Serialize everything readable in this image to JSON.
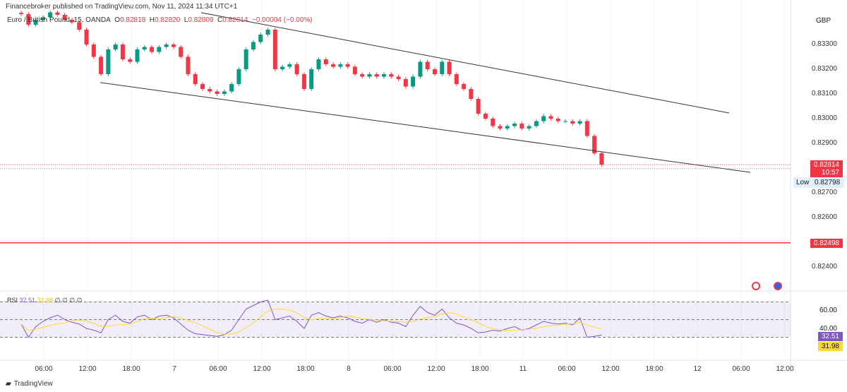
{
  "header": {
    "published": "Financebroker published on TradingView.com, Nov 11, 2024 11:34 UTC+1",
    "symbol": "Euro / British Pound, 15, OANDA",
    "o_label": "O",
    "o": "0.82818",
    "h_label": "H",
    "h": "0.82820",
    "l_label": "L",
    "l": "0.82809",
    "c_label": "C",
    "c": "0.82814",
    "change": "−0.00004 (−0.00%)"
  },
  "currency": "GBP",
  "price_axis": [
    "0.83300",
    "0.83200",
    "0.83100",
    "0.83000",
    "0.82900",
    "0.82700",
    "0.82600",
    "0.82400"
  ],
  "tags": {
    "last": "0.82814",
    "countdown": "10:57",
    "low_label": "Low",
    "low": "0.82798",
    "level": "0.82498"
  },
  "time_axis": [
    "06:00",
    "12:00",
    "18:00",
    "7",
    "06:00",
    "12:00",
    "18:00",
    "8",
    "06:00",
    "12:00",
    "18:00",
    "11",
    "06:00",
    "12:00",
    "18:00",
    "12",
    "06:00",
    "12:00"
  ],
  "rsi": {
    "label": "RSI",
    "value": "32.51",
    "ma": "31.98",
    "extra": "∅ ∅ ∅ ∅",
    "axis": [
      "60.00",
      "40.00"
    ]
  },
  "footer": {
    "brand": "TradingView"
  },
  "colors": {
    "up": "#089981",
    "down": "#f23645",
    "rsi": "#7e57c2",
    "rsi_ma": "#fdd835",
    "level": "#f23645"
  },
  "chart_data": {
    "type": "candlestick",
    "interval": "hourly closes (approx.)",
    "start": "2024-11-06 03:00",
    "closes": [
      0.83423,
      0.8338,
      0.834,
      0.8341,
      0.8343,
      0.8342,
      0.834,
      0.8339,
      0.8336,
      0.833,
      0.8325,
      0.8318,
      0.8328,
      0.833,
      0.8324,
      0.8323,
      0.8328,
      0.8329,
      0.8327,
      0.8329,
      0.833,
      0.8329,
      0.8325,
      0.8318,
      0.8314,
      0.8312,
      0.8311,
      0.831,
      0.8311,
      0.8314,
      0.832,
      0.8328,
      0.8331,
      0.8334,
      0.8336,
      0.832,
      0.8321,
      0.8322,
      0.8318,
      0.8312,
      0.832,
      0.8324,
      0.8322,
      0.8321,
      0.8322,
      0.8321,
      0.8318,
      0.8317,
      0.8318,
      0.8317,
      0.8318,
      0.8317,
      0.8316,
      0.8313,
      0.8317,
      0.8323,
      0.832,
      0.8318,
      0.8323,
      0.8318,
      0.8314,
      0.8312,
      0.8308,
      0.8302,
      0.83,
      0.8297,
      0.8296,
      0.8297,
      0.8298,
      0.8296,
      0.8297,
      0.8299,
      0.8301,
      0.83,
      0.8299,
      0.8299,
      0.8298,
      0.8299,
      0.8293,
      0.8286,
      0.82814
    ],
    "rsi_values": [
      45,
      30,
      42,
      48,
      52,
      55,
      50,
      47,
      45,
      40,
      38,
      35,
      50,
      55,
      48,
      46,
      53,
      55,
      50,
      54,
      55,
      52,
      45,
      38,
      34,
      33,
      32,
      31,
      33,
      38,
      50,
      62,
      66,
      70,
      72,
      50,
      52,
      54,
      48,
      40,
      55,
      58,
      54,
      52,
      54,
      52,
      48,
      46,
      50,
      47,
      50,
      47,
      46,
      42,
      55,
      65,
      58,
      55,
      62,
      52,
      46,
      44,
      40,
      35,
      36,
      38,
      37,
      40,
      42,
      38,
      40,
      44,
      48,
      46,
      45,
      46,
      44,
      52,
      30,
      31,
      32.51
    ],
    "rsi_ylim": [
      20,
      80
    ],
    "rsi_bands": [
      30,
      70
    ],
    "ylim": [
      0.8236,
      0.8348
    ],
    "trendlines": [
      {
        "from": [
          "2024-11-07 12:00",
          0.83429
        ],
        "to": [
          "2024-11-12 03:00",
          0.83023
        ]
      },
      {
        "from": [
          "2024-11-06 14:00",
          0.83146
        ],
        "to": [
          "2024-11-12 06:00",
          0.82783
        ]
      }
    ],
    "horizontal_line": 0.82498
  }
}
